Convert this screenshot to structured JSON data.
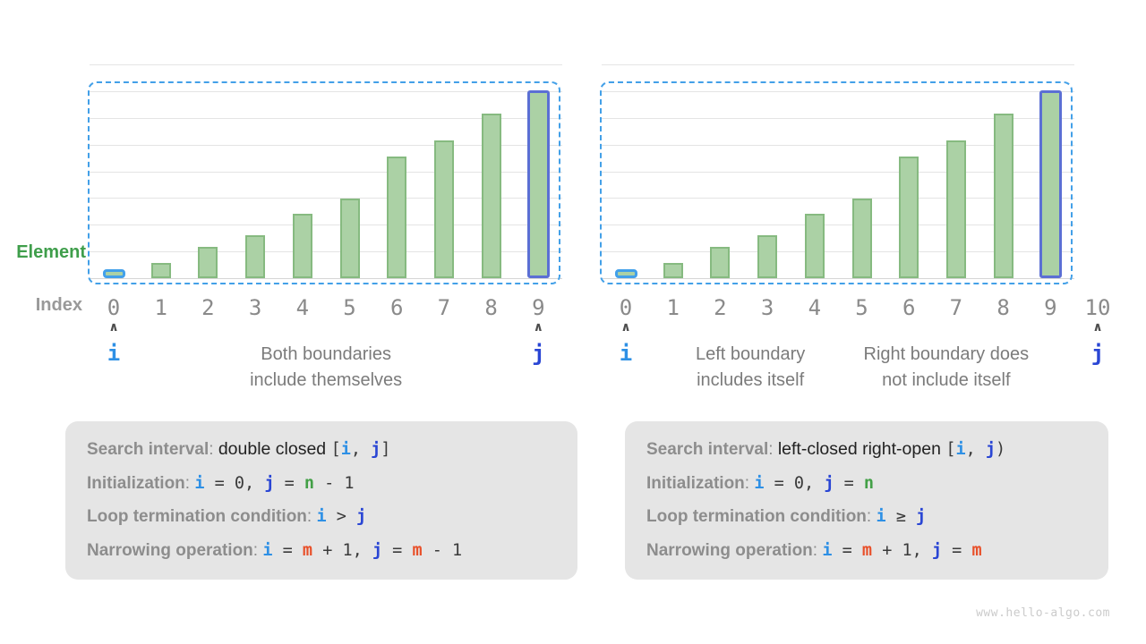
{
  "watermark": "www.hello-algo.com",
  "labels": {
    "element": "Element",
    "index": "Index"
  },
  "glyphs": {
    "caret": "∧"
  },
  "colors": {
    "grid": "#e4e4e4",
    "baseline": "#d6d6d6",
    "bar_fill": "#abd1a5",
    "bar_border": "#86ba80",
    "dash_blue": "#43a0e8",
    "i_bar_border": "#42a0ea",
    "j_bar_border": "#5b6fd4",
    "i_blue": "#2e90e5",
    "j_blue": "#2a46d4",
    "n_green": "#43a047",
    "m_orange": "#e8502a",
    "element_green": "#3f9e4b",
    "index_gray": "#999999",
    "digit_gray": "#8a8a8a",
    "caret_gray": "#4d4d4d",
    "caption_gray": "#7b7b7b",
    "label_gray": "#8d8d8d",
    "plain_dark": "#222222",
    "code_dark": "#3a3a3a",
    "box_bg": "#e5e5e5",
    "watermark_gray": "#cbcbcb"
  },
  "chart_data": [
    {
      "type": "bar",
      "title": "Binary search with double-closed interval [i, j]",
      "categories": [
        "0",
        "1",
        "2",
        "3",
        "4",
        "5",
        "6",
        "7",
        "8",
        "9"
      ],
      "values": [
        9,
        17,
        35,
        48,
        72,
        89,
        136,
        154,
        184,
        210
      ],
      "value_units": "pixel heights (no numeric axis shown; sorted array elements, increasing)",
      "xlabel": "Index",
      "ylabel": "Element",
      "grid": "horizontal, 8 intervals",
      "legend": "none",
      "annotations": "i arrow under index 0, j arrow under index 9; bars 0 and 9 highlighted; dashed box spans indices 0..9"
    },
    {
      "type": "bar",
      "title": "Binary search with left-closed right-open interval [i, j)",
      "categories": [
        "0",
        "1",
        "2",
        "3",
        "4",
        "5",
        "6",
        "7",
        "8",
        "9",
        "10"
      ],
      "values": [
        9,
        17,
        35,
        48,
        72,
        89,
        136,
        154,
        184,
        210
      ],
      "value_units": "pixel heights (no numeric axis shown; index 10 has no bar)",
      "xlabel": "Index",
      "ylabel": "Element",
      "grid": "horizontal, 8 intervals",
      "legend": "none",
      "annotations": "i arrow under index 0, j arrow under index 10 (outside dashed box); bars 0 and 9 highlighted; dashed box spans indices 0..9"
    }
  ],
  "charts": [
    {
      "name": "double-closed-interval",
      "indices": [
        "0",
        "1",
        "2",
        "3",
        "4",
        "5",
        "6",
        "7",
        "8",
        "9"
      ],
      "i_at": 0,
      "j_at": 9,
      "i_label": "i",
      "j_label": "j",
      "highlight_first": 0,
      "highlight_last": 9,
      "captions": [
        {
          "center_index": 4.5,
          "lines": [
            "Both boundaries",
            "include themselves"
          ]
        }
      ]
    },
    {
      "name": "left-closed-right-open-interval",
      "indices": [
        "0",
        "1",
        "2",
        "3",
        "4",
        "5",
        "6",
        "7",
        "8",
        "9",
        "10"
      ],
      "i_at": 0,
      "j_at": 10,
      "i_label": "i",
      "j_label": "j",
      "highlight_first": 0,
      "highlight_last": 9,
      "captions": [
        {
          "center_index": 2.64,
          "lines": [
            "Left boundary",
            "includes itself"
          ]
        },
        {
          "center_index": 6.79,
          "lines": [
            "Right boundary does",
            "not include itself"
          ]
        }
      ]
    }
  ],
  "info_boxes": [
    {
      "name": "double-closed-rules",
      "lines": [
        [
          {
            "t": "Search interval",
            "s": "label"
          },
          {
            "t": ": ",
            "s": "colon"
          },
          {
            "t": "double closed ",
            "s": "plain"
          },
          {
            "t": "[",
            "s": "code"
          },
          {
            "t": "i",
            "s": "i"
          },
          {
            "t": ", ",
            "s": "code"
          },
          {
            "t": "j",
            "s": "j"
          },
          {
            "t": "]",
            "s": "code"
          }
        ],
        [
          {
            "t": "Initialization",
            "s": "label"
          },
          {
            "t": ": ",
            "s": "colon"
          },
          {
            "t": "i",
            "s": "i"
          },
          {
            "t": " = 0, ",
            "s": "code"
          },
          {
            "t": "j",
            "s": "j"
          },
          {
            "t": " = ",
            "s": "code"
          },
          {
            "t": "n",
            "s": "n"
          },
          {
            "t": " - 1",
            "s": "code"
          }
        ],
        [
          {
            "t": "Loop termination condition",
            "s": "label"
          },
          {
            "t": ": ",
            "s": "colon"
          },
          {
            "t": "i",
            "s": "i"
          },
          {
            "t": " > ",
            "s": "code"
          },
          {
            "t": "j",
            "s": "j"
          }
        ],
        [
          {
            "t": "Narrowing operation",
            "s": "label"
          },
          {
            "t": ": ",
            "s": "colon"
          },
          {
            "t": "i",
            "s": "i"
          },
          {
            "t": " = ",
            "s": "code"
          },
          {
            "t": "m",
            "s": "m"
          },
          {
            "t": " + 1, ",
            "s": "code"
          },
          {
            "t": "j",
            "s": "j"
          },
          {
            "t": " = ",
            "s": "code"
          },
          {
            "t": "m",
            "s": "m"
          },
          {
            "t": " - 1",
            "s": "code"
          }
        ]
      ]
    },
    {
      "name": "left-closed-right-open-rules",
      "lines": [
        [
          {
            "t": "Search interval",
            "s": "label"
          },
          {
            "t": ": ",
            "s": "colon"
          },
          {
            "t": "left-closed right-open ",
            "s": "plain"
          },
          {
            "t": "[",
            "s": "code"
          },
          {
            "t": "i",
            "s": "i"
          },
          {
            "t": ", ",
            "s": "code"
          },
          {
            "t": "j",
            "s": "j"
          },
          {
            "t": ")",
            "s": "code"
          }
        ],
        [
          {
            "t": "Initialization",
            "s": "label"
          },
          {
            "t": ": ",
            "s": "colon"
          },
          {
            "t": "i",
            "s": "i"
          },
          {
            "t": " = 0, ",
            "s": "code"
          },
          {
            "t": "j",
            "s": "j"
          },
          {
            "t": " = ",
            "s": "code"
          },
          {
            "t": "n",
            "s": "n"
          }
        ],
        [
          {
            "t": "Loop termination condition",
            "s": "label"
          },
          {
            "t": ": ",
            "s": "colon"
          },
          {
            "t": "i",
            "s": "i"
          },
          {
            "t": " ≥ ",
            "s": "code"
          },
          {
            "t": "j",
            "s": "j"
          }
        ],
        [
          {
            "t": "Narrowing operation",
            "s": "label"
          },
          {
            "t": ": ",
            "s": "colon"
          },
          {
            "t": "i",
            "s": "i"
          },
          {
            "t": " = ",
            "s": "code"
          },
          {
            "t": "m",
            "s": "m"
          },
          {
            "t": " + 1, ",
            "s": "code"
          },
          {
            "t": "j",
            "s": "j"
          },
          {
            "t": " = ",
            "s": "code"
          },
          {
            "t": "m",
            "s": "m"
          }
        ]
      ]
    }
  ]
}
